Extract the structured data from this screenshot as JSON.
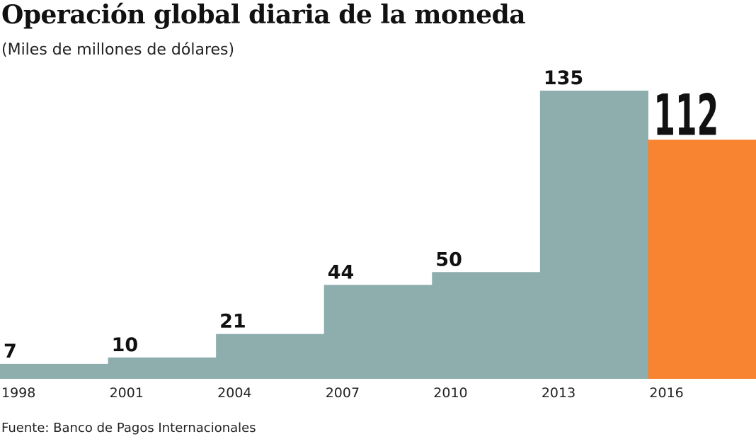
{
  "chart_data": {
    "type": "bar",
    "title": "Operación global diaria de la moneda",
    "subtitle": "(Miles de millones de dólares)",
    "source": "Fuente: Banco de Pagos Internacionales",
    "categories": [
      "1998",
      "2001",
      "2004",
      "2007",
      "2010",
      "2013",
      "2016"
    ],
    "values": [
      7,
      10,
      21,
      44,
      50,
      135,
      112
    ],
    "ylim": [
      0,
      135
    ],
    "grid": false,
    "colors": {
      "default": "#8eadad",
      "highlight": "#f88432"
    },
    "highlight_index": 6
  }
}
